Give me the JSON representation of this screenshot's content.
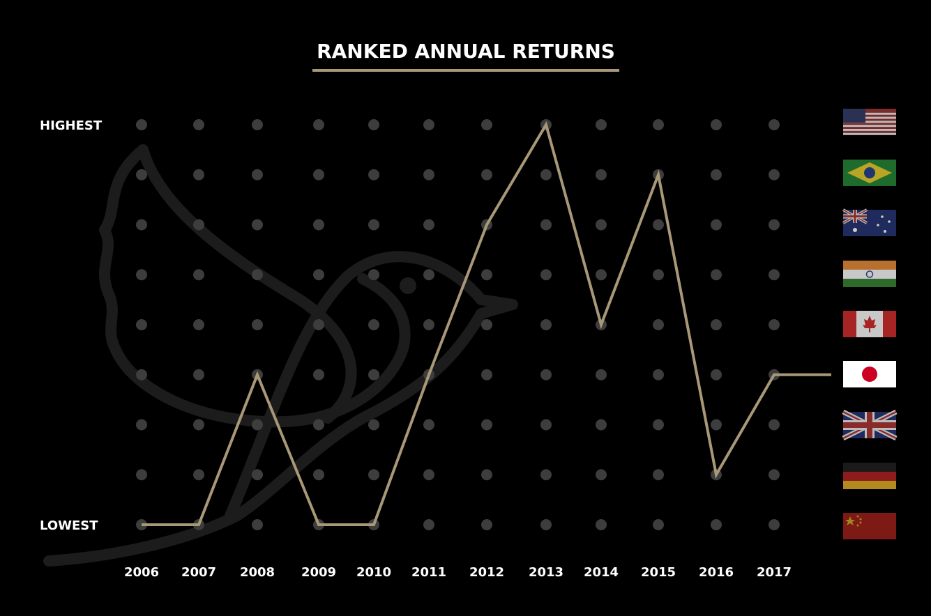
{
  "chart_data": {
    "type": "line",
    "title": "RANKED ANNUAL RETURNS",
    "y_top_label": "HIGHEST",
    "y_bottom_label": "LOWEST",
    "categories": [
      "2006",
      "2007",
      "2008",
      "2009",
      "2010",
      "2011",
      "2012",
      "2013",
      "2014",
      "2015",
      "2016",
      "2017"
    ],
    "rank_levels": 9,
    "series": [
      {
        "values": [
          9,
          9,
          6,
          9,
          9,
          6,
          3,
          1,
          5,
          2,
          8,
          6
        ],
        "color": "#a89878"
      }
    ],
    "line_extends_to_flag_rank": 6,
    "grid_dot_color": "#3d3d3d",
    "accent_color": "#a89878",
    "flags": [
      "united-states-flag",
      "brazil-flag",
      "australia-flag",
      "india-flag",
      "canada-flag",
      "japan-flag",
      "united-kingdom-flag",
      "germany-flag",
      "china-flag"
    ],
    "watermark": "bird-watermark-icon"
  }
}
